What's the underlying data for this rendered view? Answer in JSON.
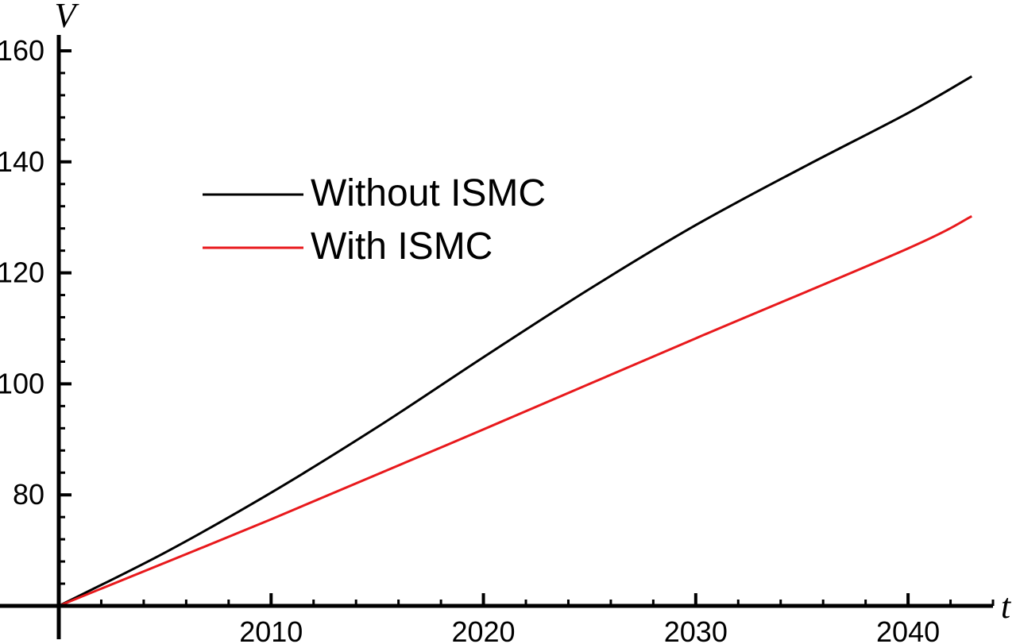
{
  "chart_data": {
    "type": "line",
    "title": "",
    "xlabel": "t",
    "ylabel": "V",
    "xlim": [
      2000,
      2044
    ],
    "ylim": [
      59.5,
      160
    ],
    "x_ticks": [
      2010,
      2020,
      2030,
      2040
    ],
    "y_ticks": [
      80,
      100,
      120,
      140,
      160
    ],
    "grid": false,
    "legend_position": "upper-left",
    "series": [
      {
        "name": "Without ISMC",
        "color": "#000000",
        "x": [
          2000,
          2005,
          2010,
          2015,
          2020,
          2025,
          2030,
          2035,
          2040,
          2043
        ],
        "y": [
          60,
          69.6,
          80.4,
          92.2,
          104.8,
          117.1,
          128.6,
          138.9,
          148.8,
          155.4
        ]
      },
      {
        "name": "With ISMC",
        "color": "#e8191c",
        "x": [
          2000,
          2010,
          2020,
          2030,
          2040,
          2043
        ],
        "y": [
          60,
          75.6,
          91.8,
          108.2,
          124.4,
          130.2
        ]
      }
    ]
  }
}
